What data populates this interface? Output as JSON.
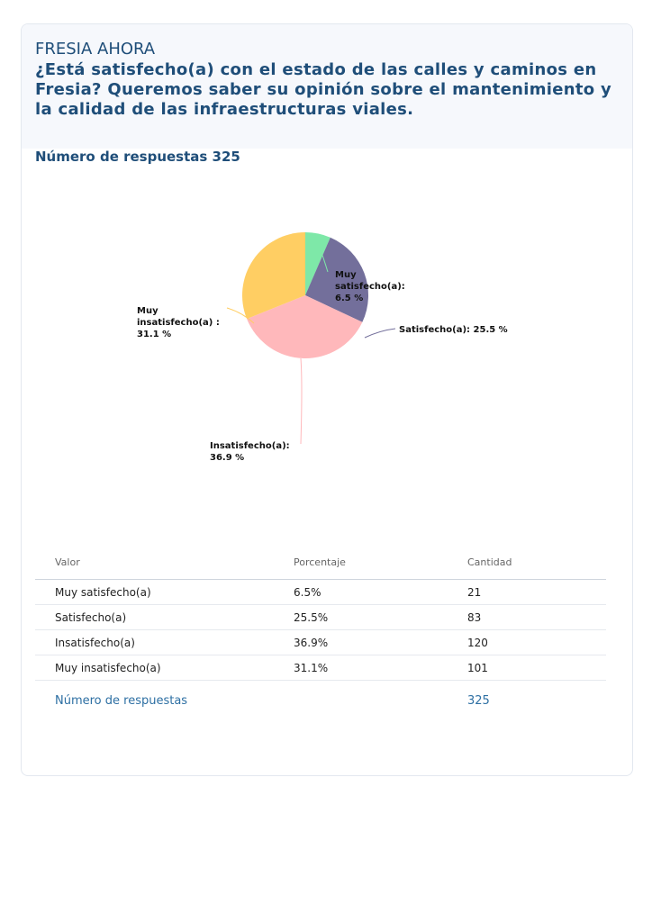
{
  "header": {
    "brand": "FRESIA AHORA",
    "question": "¿Está satisfecho(a) con el estado de las calles y caminos en Fresia? Queremos saber su opinión sobre el mantenimiento y la calidad de las infraestructuras viales.",
    "responses_label": "Número de respuestas 325"
  },
  "chart_data": {
    "type": "pie",
    "categories": [
      "Muy satisfecho(a)",
      "Satisfecho(a)",
      "Insatisfecho(a)",
      "Muy insatisfecho(a)"
    ],
    "values": [
      6.5,
      25.5,
      36.9,
      31.1
    ],
    "labels": [
      "Muy satisfecho(a): 6.5 %",
      "Satisfecho(a): 25.5 %",
      "Insatisfecho(a): 36.9 %",
      "Muy insatisfecho(a) : 31.1 %"
    ],
    "colors": [
      "#7ee8a8",
      "#736f9b",
      "#ffb8bb",
      "#ffce63"
    ]
  },
  "table": {
    "headers": [
      "Valor",
      "Porcentaje",
      "Cantidad"
    ],
    "rows": [
      [
        "Muy satisfecho(a)",
        "6.5%",
        "21"
      ],
      [
        "Satisfecho(a)",
        "25.5%",
        "83"
      ],
      [
        "Insatisfecho(a)",
        "36.9%",
        "120"
      ],
      [
        "Muy insatisfecho(a)",
        "31.1%",
        "101"
      ]
    ],
    "total_label": "Número de respuestas",
    "total_value": "325"
  }
}
